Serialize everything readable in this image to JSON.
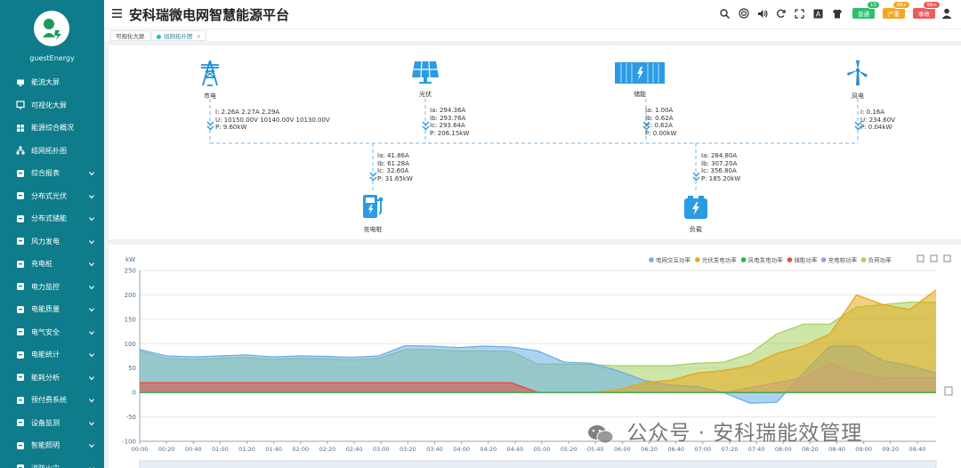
{
  "app": {
    "title": "安科瑞微电网智慧能源平台",
    "user": "guestEnergy"
  },
  "sidebar": {
    "items": [
      {
        "label": "能流大屏",
        "icon": "monitor-icon",
        "expandable": false
      },
      {
        "label": "可视化大屏",
        "icon": "screen-icon",
        "expandable": false
      },
      {
        "label": "能源综合概况",
        "icon": "grid-icon",
        "expandable": false
      },
      {
        "label": "组网拓扑图",
        "icon": "topology-icon",
        "expandable": false
      },
      {
        "label": "综合报表",
        "icon": "report-icon",
        "expandable": true
      },
      {
        "label": "分布式光伏",
        "icon": "solar-icon",
        "expandable": true
      },
      {
        "label": "分布式储能",
        "icon": "battery-icon",
        "expandable": true
      },
      {
        "label": "风力发电",
        "icon": "wind-icon",
        "expandable": true
      },
      {
        "label": "充电桩",
        "icon": "charger-icon",
        "expandable": true
      },
      {
        "label": "电力监控",
        "icon": "power-icon",
        "expandable": true
      },
      {
        "label": "电能质量",
        "icon": "quality-icon",
        "expandable": true
      },
      {
        "label": "电气安全",
        "icon": "safety-icon",
        "expandable": true
      },
      {
        "label": "电能统计",
        "icon": "stats-icon",
        "expandable": true
      },
      {
        "label": "能耗分析",
        "icon": "analysis-icon",
        "expandable": true
      },
      {
        "label": "预付费系统",
        "icon": "prepay-icon",
        "expandable": true
      },
      {
        "label": "设备监测",
        "icon": "device-icon",
        "expandable": true
      },
      {
        "label": "智能照明",
        "icon": "light-icon",
        "expandable": true
      },
      {
        "label": "消防火灾",
        "icon": "fire-icon",
        "expandable": true
      }
    ]
  },
  "header": {
    "badges": [
      {
        "label": "普通",
        "count": "13",
        "color": "#2cc06b"
      },
      {
        "label": "严重",
        "count": "99+",
        "color": "#f5a623"
      },
      {
        "label": "事故",
        "count": "99+",
        "color": "#f25a5a"
      }
    ]
  },
  "tabs": [
    {
      "label": "可视化大屏",
      "active": false
    },
    {
      "label": "组网拓扑图",
      "active": true
    }
  ],
  "topology": {
    "grid": {
      "label": "市电",
      "lines": [
        "I: 2.26A 2.27A 2.29A",
        "U: 10150.00V 10140.00V 10130.00V",
        "P: 9.60kW"
      ]
    },
    "pv": {
      "label": "光伏",
      "lines": [
        "Ia: 294.36A",
        "Ib: 293.76A",
        "Ic: 293.64A",
        "P: 206.15kW"
      ]
    },
    "storage": {
      "label": "储能",
      "lines": [
        "Ia: 1.00A",
        "Ib: 0.62A",
        "Ic: 0.62A",
        "P: 0.00kW"
      ]
    },
    "wind": {
      "label": "风电",
      "lines": [
        "I: 0.16A",
        "U: 234.60V",
        "P: 0.04kW"
      ]
    },
    "charger": {
      "label": "充电桩",
      "lines": [
        "Ia: 41.86A",
        "Ib: 61.28A",
        "Ic: 32.60A",
        "P: 31.65kW"
      ]
    },
    "load": {
      "label": "负载",
      "lines": [
        "Ia: 284.80A",
        "Ib: 307.20A",
        "Ic: 356.80A",
        "P: 185.20kW"
      ]
    }
  },
  "chart_data": {
    "type": "area",
    "ylabel": "kW",
    "ylim": [
      -100,
      250
    ],
    "yticks": [
      -100,
      -50,
      0,
      50,
      100,
      150,
      200,
      250
    ],
    "xticks": [
      "00:00",
      "00:20",
      "00:40",
      "01:00",
      "01:20",
      "01:40",
      "02:00",
      "02:20",
      "02:40",
      "03:00",
      "03:20",
      "03:40",
      "04:00",
      "04:20",
      "04:40",
      "05:00",
      "05:20",
      "05:40",
      "06:00",
      "06:20",
      "06:40",
      "07:00",
      "07:20",
      "07:40",
      "08:00",
      "08:20",
      "08:40",
      "09:00",
      "09:20",
      "09:40"
    ],
    "legend_position": "top-right",
    "legend": [
      {
        "name": "电网交互功率",
        "color": "#6aaee8"
      },
      {
        "name": "光伏发电功率",
        "color": "#e6a817"
      },
      {
        "name": "风电发电功率",
        "color": "#22b14c"
      },
      {
        "name": "储能功率",
        "color": "#e8473f"
      },
      {
        "name": "充电桩功率",
        "color": "#a99ad9"
      },
      {
        "name": "负荷功率",
        "color": "#a6d160"
      }
    ],
    "series": [
      {
        "name": "电网交互功率",
        "values": [
          88,
          75,
          73,
          75,
          77,
          73,
          75,
          74,
          72,
          75,
          96,
          95,
          92,
          95,
          93,
          85,
          62,
          60,
          45,
          25,
          15,
          12,
          0,
          -22,
          -20,
          40,
          95,
          95,
          65,
          55,
          40
        ]
      },
      {
        "name": "光伏发电功率",
        "values": [
          0,
          0,
          0,
          0,
          0,
          0,
          0,
          0,
          0,
          0,
          0,
          0,
          0,
          0,
          0,
          0,
          0,
          0,
          5,
          20,
          25,
          40,
          45,
          55,
          80,
          95,
          120,
          200,
          180,
          170,
          210
        ]
      },
      {
        "name": "风电发电功率",
        "values": [
          0,
          0,
          0,
          0,
          0,
          0,
          0,
          0,
          0,
          0,
          0,
          0,
          0,
          0,
          0,
          0,
          0,
          0,
          0,
          0,
          0,
          0,
          0,
          0,
          0,
          0,
          0,
          0,
          0,
          0,
          0
        ]
      },
      {
        "name": "储能功率",
        "values": [
          20,
          20,
          20,
          20,
          20,
          20,
          20,
          20,
          20,
          20,
          20,
          20,
          20,
          20,
          20,
          0,
          0,
          0,
          0,
          0,
          0,
          0,
          0,
          0,
          0,
          0,
          0,
          0,
          0,
          0,
          0
        ]
      },
      {
        "name": "充电桩功率",
        "values": [
          0,
          0,
          0,
          0,
          0,
          0,
          0,
          0,
          0,
          0,
          0,
          0,
          0,
          0,
          0,
          0,
          0,
          0,
          0,
          0,
          0,
          0,
          0,
          10,
          20,
          30,
          60,
          40,
          30,
          30,
          30
        ]
      },
      {
        "name": "负荷功率",
        "values": [
          85,
          70,
          68,
          70,
          72,
          68,
          70,
          69,
          67,
          70,
          88,
          88,
          85,
          85,
          84,
          58,
          58,
          57,
          55,
          55,
          55,
          60,
          62,
          80,
          120,
          140,
          140,
          175,
          180,
          185,
          185
        ]
      }
    ]
  },
  "watermark": "公众号 · 安科瑞能效管理"
}
